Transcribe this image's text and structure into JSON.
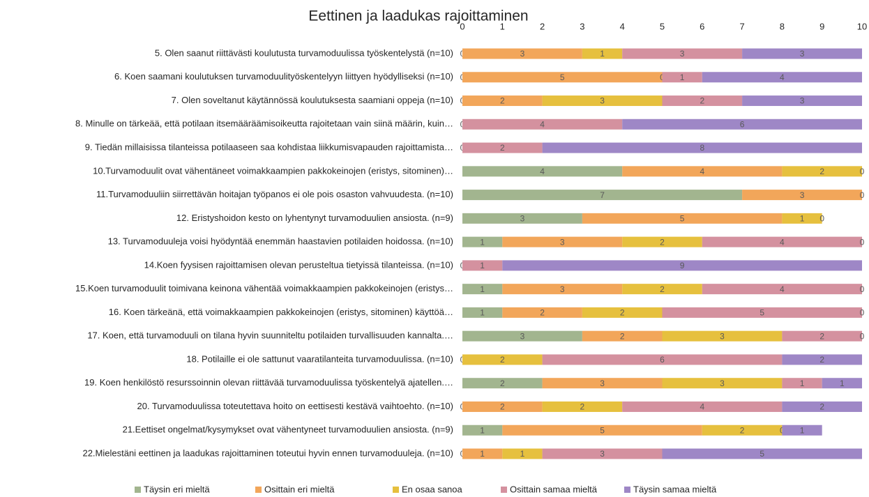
{
  "chart_data": {
    "type": "stacked-bar-horizontal",
    "title": "Eettinen ja laadukas rajoittaminen",
    "categories": [
      "5. Olen saanut riittävästi koulutusta turvamoduulissa työskentelystä (n=10)",
      "6. Koen saamani koulutuksen turvamoduulityöskentelyyn liittyen hyödylliseksi  (n=10)",
      "7. Olen soveltanut käytännössä koulutuksesta saamiani oppeja (n=10)",
      "8. Minulle on tärkeää, että potilaan itsemääräämisoikeutta rajoitetaan vain siinä määrin, kuin…",
      "9. Tiedän millaisissa tilanteissa potilaaseen saa kohdistaa liikkumisvapauden rajoittamista…",
      "10.Turvamoduulit ovat vähentäneet voimakkaampien pakkokeinojen (eristys, sitominen)…",
      "11.Turvamoduuliin siirrettävän hoitajan työpanos ei ole pois osaston vahvuudesta. (n=10)",
      "12. Eristyshoidon kesto on lyhentynyt turvamoduulien ansiosta. (n=9)",
      "13. Turvamoduuleja voisi hyödyntää enemmän haastavien potilaiden hoidossa. (n=10)",
      "14.Koen fyysisen rajoittamisen olevan perusteltua tietyissä tilanteissa. (n=10)",
      "15.Koen turvamoduulit toimivana keinona vähentää voimakkaampien pakkokeinojen (eristys…",
      "16. Koen tärkeänä, että voimakkaampien pakkokeinojen (eristys, sitominen) käyttöä…",
      "17. Koen, että turvamoduuli on tilana hyvin suunniteltu potilaiden turvallisuuden kannalta.…",
      "18. Potilaille ei ole sattunut vaaratilanteita turvamoduulissa. (n=10)",
      "19. Koen henkilöstö resurssoinnin olevan riittävää turvamoduulissa työskentelyä ajatellen.…",
      "20. Turvamoduulissa toteutettava hoito on eettisesti kestävä vaihtoehto. (n=10)",
      "21.Eettiset ongelmat/kysymykset ovat vähentyneet turvamoduulien ansiosta. (n=9)",
      "22.Mielestäni eettinen ja laadukas rajoittaminen toteutui hyvin  ennen turvamoduuleja. (n=10)"
    ],
    "series": [
      {
        "name": "Täysin eri mieltä",
        "color": "#a2b58f",
        "values": [
          0,
          0,
          0,
          0,
          0,
          4,
          7,
          3,
          1,
          0,
          1,
          1,
          3,
          0,
          2,
          0,
          1,
          0
        ]
      },
      {
        "name": "Osittain eri mieltä",
        "color": "#f2a65a",
        "values": [
          3,
          5,
          2,
          null,
          null,
          4,
          3,
          5,
          3,
          null,
          3,
          2,
          2,
          null,
          3,
          2,
          5,
          1
        ]
      },
      {
        "name": "En osaa sanoa",
        "color": "#e6c03e",
        "values": [
          1,
          0,
          3,
          null,
          null,
          2,
          0,
          1,
          2,
          null,
          2,
          2,
          3,
          2,
          3,
          2,
          2,
          1
        ]
      },
      {
        "name": "Osittain samaa mieltä",
        "color": "#d4919f",
        "values": [
          3,
          1,
          2,
          4,
          2,
          0,
          null,
          0,
          4,
          1,
          4,
          5,
          2,
          6,
          1,
          4,
          0,
          3
        ]
      },
      {
        "name": "Täysin samaa mieltä",
        "color": "#9e87c6",
        "values": [
          3,
          4,
          3,
          6,
          8,
          null,
          null,
          null,
          0,
          9,
          0,
          0,
          0,
          2,
          1,
          2,
          1,
          5
        ]
      }
    ],
    "xlim": [
      0,
      10
    ],
    "xticks": [
      0,
      1,
      2,
      3,
      4,
      5,
      6,
      7,
      8,
      9,
      10
    ],
    "legend": "bottom"
  }
}
